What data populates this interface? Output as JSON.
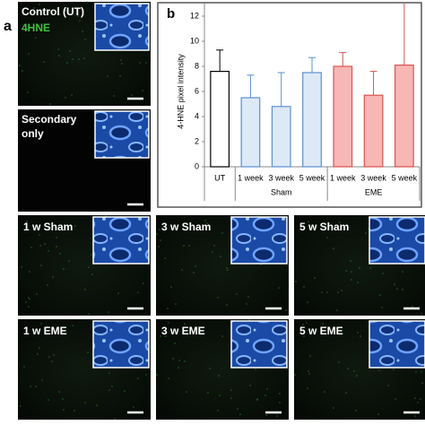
{
  "panel_a": {
    "label": "a",
    "images": [
      {
        "title_lines": [
          "Control (UT)"
        ],
        "stain": "4HNE"
      },
      {
        "title_lines": [
          "Secondary",
          " only"
        ]
      }
    ]
  },
  "panel_c": {
    "images": [
      {
        "title": "1 w Sham"
      },
      {
        "title": "3 w Sham"
      },
      {
        "title": "5 w Sham"
      },
      {
        "title": "1 w EME"
      },
      {
        "title": "3 w EME"
      },
      {
        "title": "5 w EME"
      }
    ]
  },
  "chart_data": {
    "type": "bar",
    "panel_label": "b",
    "ylabel": "4-HNE pixel intensity",
    "categories": [
      "UT",
      "1 week",
      "3 week",
      "5 week",
      "1 week",
      "3 week",
      "5 week"
    ],
    "category_groups": [
      null,
      "Sham",
      "Sham",
      "Sham",
      "EME",
      "EME",
      "EME"
    ],
    "values": [
      7.6,
      5.5,
      4.8,
      7.5,
      8.0,
      5.7,
      8.1
    ],
    "errors": [
      1.7,
      1.8,
      2.7,
      1.2,
      1.1,
      1.9,
      5.5
    ],
    "colors": [
      "#ffffff",
      "#dde9f6",
      "#dde9f6",
      "#dde9f6",
      "#f7b7b5",
      "#f7b7b5",
      "#f7b7b5"
    ],
    "edge_colors": [
      "#000000",
      "#5b8fcf",
      "#5b8fcf",
      "#5b8fcf",
      "#d9534f",
      "#d9534f",
      "#d9534f"
    ],
    "ylim": [
      0,
      13
    ],
    "yticks": [
      0,
      2,
      4,
      6,
      8,
      10,
      12
    ]
  }
}
